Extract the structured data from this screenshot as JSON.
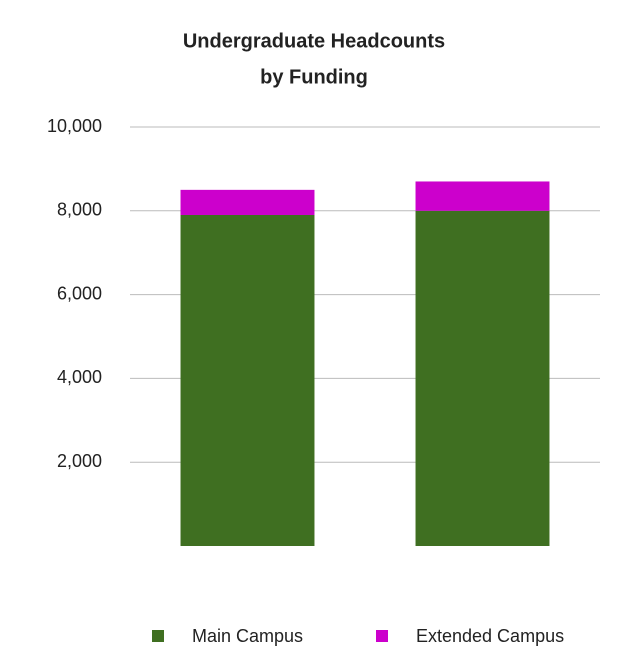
{
  "chart_data": {
    "type": "bar",
    "stacked": true,
    "title": [
      "Undergraduate Headcounts",
      "by Funding"
    ],
    "categories": [
      null,
      null
    ],
    "series": [
      {
        "name": "Main Campus",
        "color": "#3f6f21",
        "values": [
          7900,
          8000
        ]
      },
      {
        "name": "Extended Campus",
        "color": "#cc00cc",
        "values": [
          600,
          700
        ]
      }
    ],
    "ylim": [
      0,
      10000
    ],
    "yticks": [
      {
        "value": 2000,
        "label": "2,000"
      },
      {
        "value": 4000,
        "label": "4,000"
      },
      {
        "value": 6000,
        "label": "6,000"
      },
      {
        "value": 8000,
        "label": "8,000"
      },
      {
        "value": 10000,
        "label": "10,000"
      }
    ],
    "grid": true,
    "legend": "bottom"
  }
}
